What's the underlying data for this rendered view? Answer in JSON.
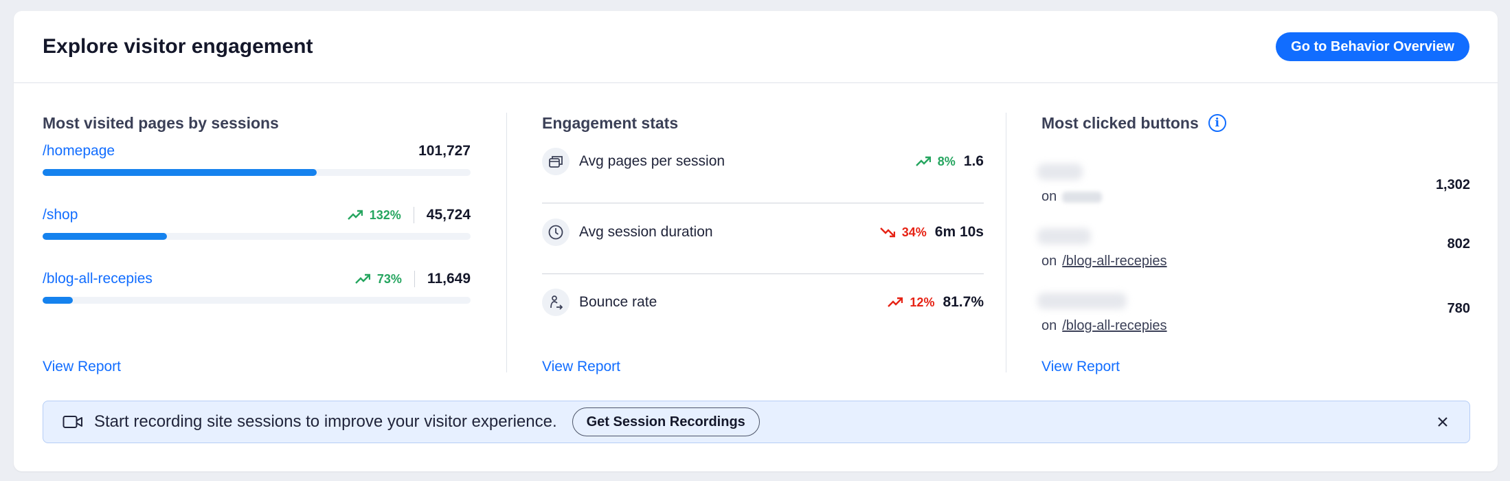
{
  "header": {
    "title": "Explore visitor engagement",
    "cta_label": "Go to Behavior Overview"
  },
  "colors": {
    "primary": "#116dff",
    "bar": "#1582ee",
    "trend_up": "#25a55f",
    "trend_down": "#e62214",
    "banner_bg": "#e7f0ff"
  },
  "pages": {
    "title": "Most visited pages by sessions",
    "items": [
      {
        "path": "/homepage",
        "trend": "",
        "value": "101,727",
        "fill_fraction": 0.64
      },
      {
        "path": "/shop",
        "trend": "132%",
        "value": "45,724",
        "fill_fraction": 0.29
      },
      {
        "path": "/blog-all-recepies",
        "trend": "73%",
        "value": "11,649",
        "fill_fraction": 0.07
      }
    ],
    "view_report": "View Report"
  },
  "engagement": {
    "title": "Engagement stats",
    "items": [
      {
        "label": "Avg pages per session",
        "icon": "pages-icon",
        "direction": "up",
        "trend": "8%",
        "value": "1.6"
      },
      {
        "label": "Avg session duration",
        "icon": "clock-icon",
        "direction": "down",
        "trend": "34%",
        "value": "6m 10s"
      },
      {
        "label": "Bounce rate",
        "icon": "bounce-icon",
        "direction": "up-bad",
        "trend": "12%",
        "value": "81.7%"
      }
    ],
    "view_report": "View Report"
  },
  "buttons": {
    "title": "Most clicked buttons",
    "info_icon": "info-icon",
    "items": [
      {
        "on": "on",
        "page": "",
        "count": "1,302"
      },
      {
        "on": "on",
        "page": "/blog-all-recepies",
        "count": "802"
      },
      {
        "on": "on",
        "page": "/blog-all-recepies",
        "count": "780"
      }
    ],
    "view_report": "View Report"
  },
  "banner": {
    "icon": "video-camera-icon",
    "text": "Start recording site sessions to improve your visitor experience.",
    "button_label": "Get Session Recordings",
    "close_icon": "close-icon"
  }
}
